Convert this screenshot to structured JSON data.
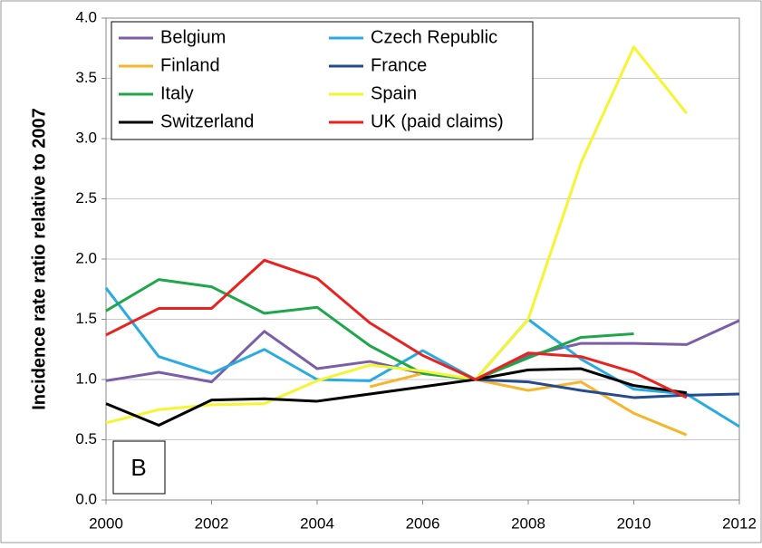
{
  "chart_data": {
    "type": "line",
    "y_label": "Incidence rate ratio relative to 2007",
    "annotation": "B",
    "x": [
      2000,
      2001,
      2002,
      2003,
      2004,
      2005,
      2006,
      2007,
      2008,
      2009,
      2010,
      2011,
      2012
    ],
    "xlim": [
      2000,
      2012
    ],
    "xticks": [
      2000,
      2002,
      2004,
      2006,
      2008,
      2010,
      2012
    ],
    "ylim": [
      0,
      4
    ],
    "yticks": [
      {
        "value": 0,
        "label": "0.0"
      },
      {
        "value": 0.5,
        "label": "0.5"
      },
      {
        "value": 1,
        "label": "1.0"
      },
      {
        "value": 1.5,
        "label": "1.5"
      },
      {
        "value": 2,
        "label": "2.0"
      },
      {
        "value": 2.5,
        "label": "2.5"
      },
      {
        "value": 3,
        "label": "3.0"
      },
      {
        "value": 3.5,
        "label": "3.5"
      },
      {
        "value": 4,
        "label": "4.0"
      }
    ],
    "grid": true,
    "legend": "upper left",
    "series": [
      {
        "name": "Belgium",
        "color": "#7b5ea7",
        "values": [
          0.99,
          1.06,
          0.98,
          1.4,
          1.09,
          1.15,
          1.05,
          1.0,
          1.2,
          1.3,
          1.3,
          1.29,
          1.49
        ]
      },
      {
        "name": "Czech Republic",
        "color": "#29abe2",
        "values": [
          1.76,
          1.19,
          1.05,
          1.25,
          1.0,
          0.99,
          1.24,
          1.0,
          1.5,
          1.17,
          0.92,
          0.88,
          0.61
        ]
      },
      {
        "name": "Finland",
        "color": "#f7b52c",
        "values": [
          null,
          null,
          null,
          null,
          null,
          0.94,
          1.05,
          1.0,
          0.91,
          0.98,
          0.72,
          0.54,
          null
        ]
      },
      {
        "name": "France",
        "color": "#244a8f",
        "values": [
          null,
          null,
          null,
          null,
          null,
          null,
          null,
          1.0,
          0.98,
          0.91,
          0.85,
          0.87,
          0.88
        ]
      },
      {
        "name": "Italy",
        "color": "#1fa64a",
        "values": [
          1.57,
          1.83,
          1.77,
          1.55,
          1.6,
          1.28,
          1.05,
          1.0,
          1.18,
          1.35,
          1.38,
          null,
          null
        ]
      },
      {
        "name": "Spain",
        "color": "#f5f531",
        "values": [
          0.64,
          0.75,
          0.79,
          0.8,
          0.99,
          1.12,
          1.07,
          1.0,
          1.5,
          2.8,
          3.76,
          3.21,
          null
        ]
      },
      {
        "name": "Switzerland",
        "color": "#000000",
        "values": [
          0.8,
          0.62,
          0.83,
          0.84,
          0.82,
          0.88,
          0.94,
          1.0,
          1.08,
          1.09,
          0.95,
          0.89,
          null
        ]
      },
      {
        "name": "UK (paid claims)",
        "color": "#e8231f",
        "values": [
          1.37,
          1.59,
          1.59,
          1.99,
          1.84,
          1.47,
          1.2,
          1.0,
          1.22,
          1.19,
          1.06,
          0.85,
          null
        ]
      }
    ]
  }
}
